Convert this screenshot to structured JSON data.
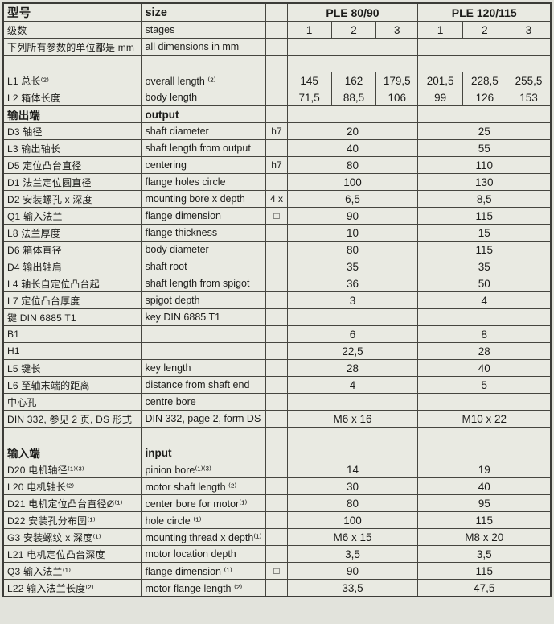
{
  "table": {
    "rows": [
      {
        "type": "head",
        "bold": true,
        "cn": "型号",
        "en": "size",
        "g1": "PLE 80/90",
        "g2": "PLE 120/115"
      },
      {
        "type": "row6",
        "cn": "级数",
        "en": "stages",
        "unit": "",
        "values": [
          "1",
          "2",
          "3",
          "1",
          "2",
          "3"
        ]
      },
      {
        "type": "row2",
        "cn": "下列所有参数的单位都是 mm",
        "en": "all dimensions in mm",
        "unit": "",
        "v1": "",
        "v2": ""
      },
      {
        "type": "row2",
        "cn": "",
        "en": "",
        "unit": "",
        "v1": "",
        "v2": ""
      },
      {
        "type": "row6",
        "cn": "L1 总长⁽²⁾",
        "en": "overall length ⁽²⁾",
        "unit": "",
        "values": [
          "145",
          "162",
          "179,5",
          "201,5",
          "228,5",
          "255,5"
        ]
      },
      {
        "type": "row6",
        "cn": "L2 箱体长度",
        "en": "body length",
        "unit": "",
        "values": [
          "71,5",
          "88,5",
          "106",
          "99",
          "126",
          "153"
        ]
      },
      {
        "type": "row2",
        "bold": true,
        "cn": "输出端",
        "en": "output",
        "unit": "",
        "v1": "",
        "v2": ""
      },
      {
        "type": "row2",
        "cn": "D3 轴径",
        "en": "shaft diameter",
        "unit": "h7",
        "v1": "20",
        "v2": "25"
      },
      {
        "type": "row2",
        "cn": "L3 输出轴长",
        "en": "shaft length from output",
        "unit": "",
        "v1": "40",
        "v2": "55"
      },
      {
        "type": "row2",
        "cn": "D5 定位凸台直径",
        "en": "centering",
        "unit": "h7",
        "v1": "80",
        "v2": "110"
      },
      {
        "type": "row2",
        "cn": "D1 法兰定位圆直径",
        "en": "flange holes circle",
        "unit": "",
        "v1": "100",
        "v2": "130"
      },
      {
        "type": "row2",
        "cn": "D2 安装螺孔 x 深度",
        "en": "mounting bore x depth",
        "unit": "4 x",
        "v1": "6,5",
        "v2": "8,5"
      },
      {
        "type": "row2",
        "cn": "Q1 输入法兰",
        "en": "flange dimension",
        "unit": "□",
        "v1": "90",
        "v2": "115"
      },
      {
        "type": "row2",
        "cn": "L8 法兰厚度",
        "en": "flange thickness",
        "unit": "",
        "v1": "10",
        "v2": "15"
      },
      {
        "type": "row2",
        "cn": "D6 箱体直径",
        "en": "body diameter",
        "unit": "",
        "v1": "80",
        "v2": "115"
      },
      {
        "type": "row2",
        "cn": "D4 输出轴肩",
        "en": "shaft root",
        "unit": "",
        "v1": "35",
        "v2": "35"
      },
      {
        "type": "row2",
        "cn": "L4 轴长自定位凸台起",
        "en": "shaft length from spigot",
        "unit": "",
        "v1": "36",
        "v2": "50"
      },
      {
        "type": "row2",
        "cn": "L7 定位凸台厚度",
        "en": "spigot depth",
        "unit": "",
        "v1": "3",
        "v2": "4"
      },
      {
        "type": "row2",
        "cn": "键 DIN 6885 T1",
        "en": "key DIN 6885 T1",
        "unit": "",
        "v1": "",
        "v2": ""
      },
      {
        "type": "row2",
        "cn": "B1",
        "en": "",
        "unit": "",
        "v1": "6",
        "v2": "8"
      },
      {
        "type": "row2",
        "cn": "H1",
        "en": "",
        "unit": "",
        "v1": "22,5",
        "v2": "28"
      },
      {
        "type": "row2",
        "cn": "L5 键长",
        "en": "key length",
        "unit": "",
        "v1": "28",
        "v2": "40"
      },
      {
        "type": "row2",
        "cn": "L6 至轴末端的距离",
        "en": "distance from shaft end",
        "unit": "",
        "v1": "4",
        "v2": "5"
      },
      {
        "type": "row2",
        "cn": "中心孔",
        "en": "centre bore",
        "unit": "",
        "v1": "",
        "v2": ""
      },
      {
        "type": "row2",
        "cn": "DIN 332, 参见 2 页, DS 形式",
        "en": "DIN 332, page 2, form DS",
        "unit": "",
        "v1": "M6 x 16",
        "v2": "M10 x 22"
      },
      {
        "type": "row2",
        "cn": "",
        "en": "",
        "unit": "",
        "v1": "",
        "v2": ""
      },
      {
        "type": "row2",
        "bold": true,
        "cn": "输入端",
        "en": "input",
        "unit": "",
        "v1": "",
        "v2": ""
      },
      {
        "type": "row2",
        "cn": "D20 电机轴径⁽¹⁾⁽³⁾",
        "en": "pinion bore⁽¹⁾⁽³⁾",
        "unit": "",
        "v1": "14",
        "v2": "19"
      },
      {
        "type": "row2",
        "cn": "L20 电机轴长⁽²⁾",
        "en": "motor shaft length ⁽²⁾",
        "unit": "",
        "v1": "30",
        "v2": "40"
      },
      {
        "type": "row2",
        "cn": "D21 电机定位凸台直径Ø⁽¹⁾",
        "en": "center bore for motor⁽¹⁾",
        "unit": "",
        "v1": "80",
        "v2": "95"
      },
      {
        "type": "row2",
        "cn": "D22 安装孔分布圆⁽¹⁾",
        "en": "hole circle ⁽¹⁾",
        "unit": "",
        "v1": "100",
        "v2": "115"
      },
      {
        "type": "row2",
        "cn": "G3 安装螺纹 x 深度⁽¹⁾",
        "en": "mounting thread x depth⁽¹⁾",
        "unit": "",
        "v1": "M6 x 15",
        "v2": "M8 x 20"
      },
      {
        "type": "row2",
        "cn": "L21 电机定位凸台深度",
        "en": "motor location depth",
        "unit": "",
        "v1": "3,5",
        "v2": "3,5"
      },
      {
        "type": "row2",
        "cn": "Q3 输入法兰⁽¹⁾",
        "en": "flange dimension ⁽¹⁾",
        "unit": "□",
        "v1": "90",
        "v2": "115"
      },
      {
        "type": "row2",
        "cn": "L22 输入法兰长度⁽²⁾",
        "en": "motor flange length ⁽²⁾",
        "unit": "",
        "v1": "33,5",
        "v2": "47,5"
      }
    ]
  }
}
